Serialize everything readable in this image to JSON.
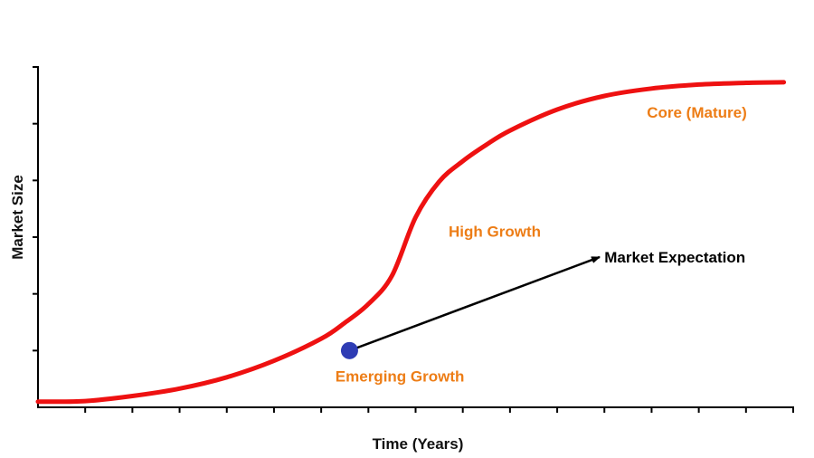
{
  "chart_data": {
    "type": "line",
    "title": "",
    "xlabel": "Time (Years)",
    "ylabel": "Market Size",
    "xlim": [
      0,
      16
    ],
    "ylim": [
      0,
      6
    ],
    "x_ticks": [
      1,
      2,
      3,
      4,
      5,
      6,
      7,
      8,
      9,
      10,
      11,
      12,
      13,
      14,
      15,
      16
    ],
    "y_ticks": [
      1,
      2,
      3,
      4,
      5,
      6
    ],
    "tick_labels_shown": false,
    "grid": false,
    "legend": "none",
    "series": [
      {
        "color": "#ee1111",
        "x": [
          0,
          1,
          2,
          3,
          4,
          5,
          6,
          6.5,
          7,
          7.5,
          8,
          8.5,
          9,
          9.5,
          10,
          11,
          12,
          13,
          14,
          15,
          15.8
        ],
        "y": [
          0.1,
          0.11,
          0.2,
          0.33,
          0.53,
          0.82,
          1.21,
          1.49,
          1.82,
          2.32,
          3.35,
          3.98,
          4.34,
          4.63,
          4.88,
          5.25,
          5.49,
          5.62,
          5.69,
          5.72,
          5.73
        ]
      }
    ],
    "highlight_point": {
      "x": 6.6,
      "y": 1.0,
      "color": "#2e3cb4"
    },
    "arrow": {
      "from": [
        6.6,
        1.0
      ],
      "to": [
        11.9,
        2.65
      ],
      "color": "#000000"
    },
    "annotations": [
      {
        "text": "Emerging Growth",
        "x": 6.3,
        "y": 0.55,
        "color": "#ed7d16"
      },
      {
        "text": "High Growth",
        "x": 8.7,
        "y": 3.1,
        "color": "#ed7d16"
      },
      {
        "text": "Market Expectation",
        "x": 12.0,
        "y": 2.65,
        "color": "#000000"
      },
      {
        "text": "Core (Mature)",
        "x": 12.9,
        "y": 5.2,
        "color": "#ed7d16"
      }
    ]
  }
}
